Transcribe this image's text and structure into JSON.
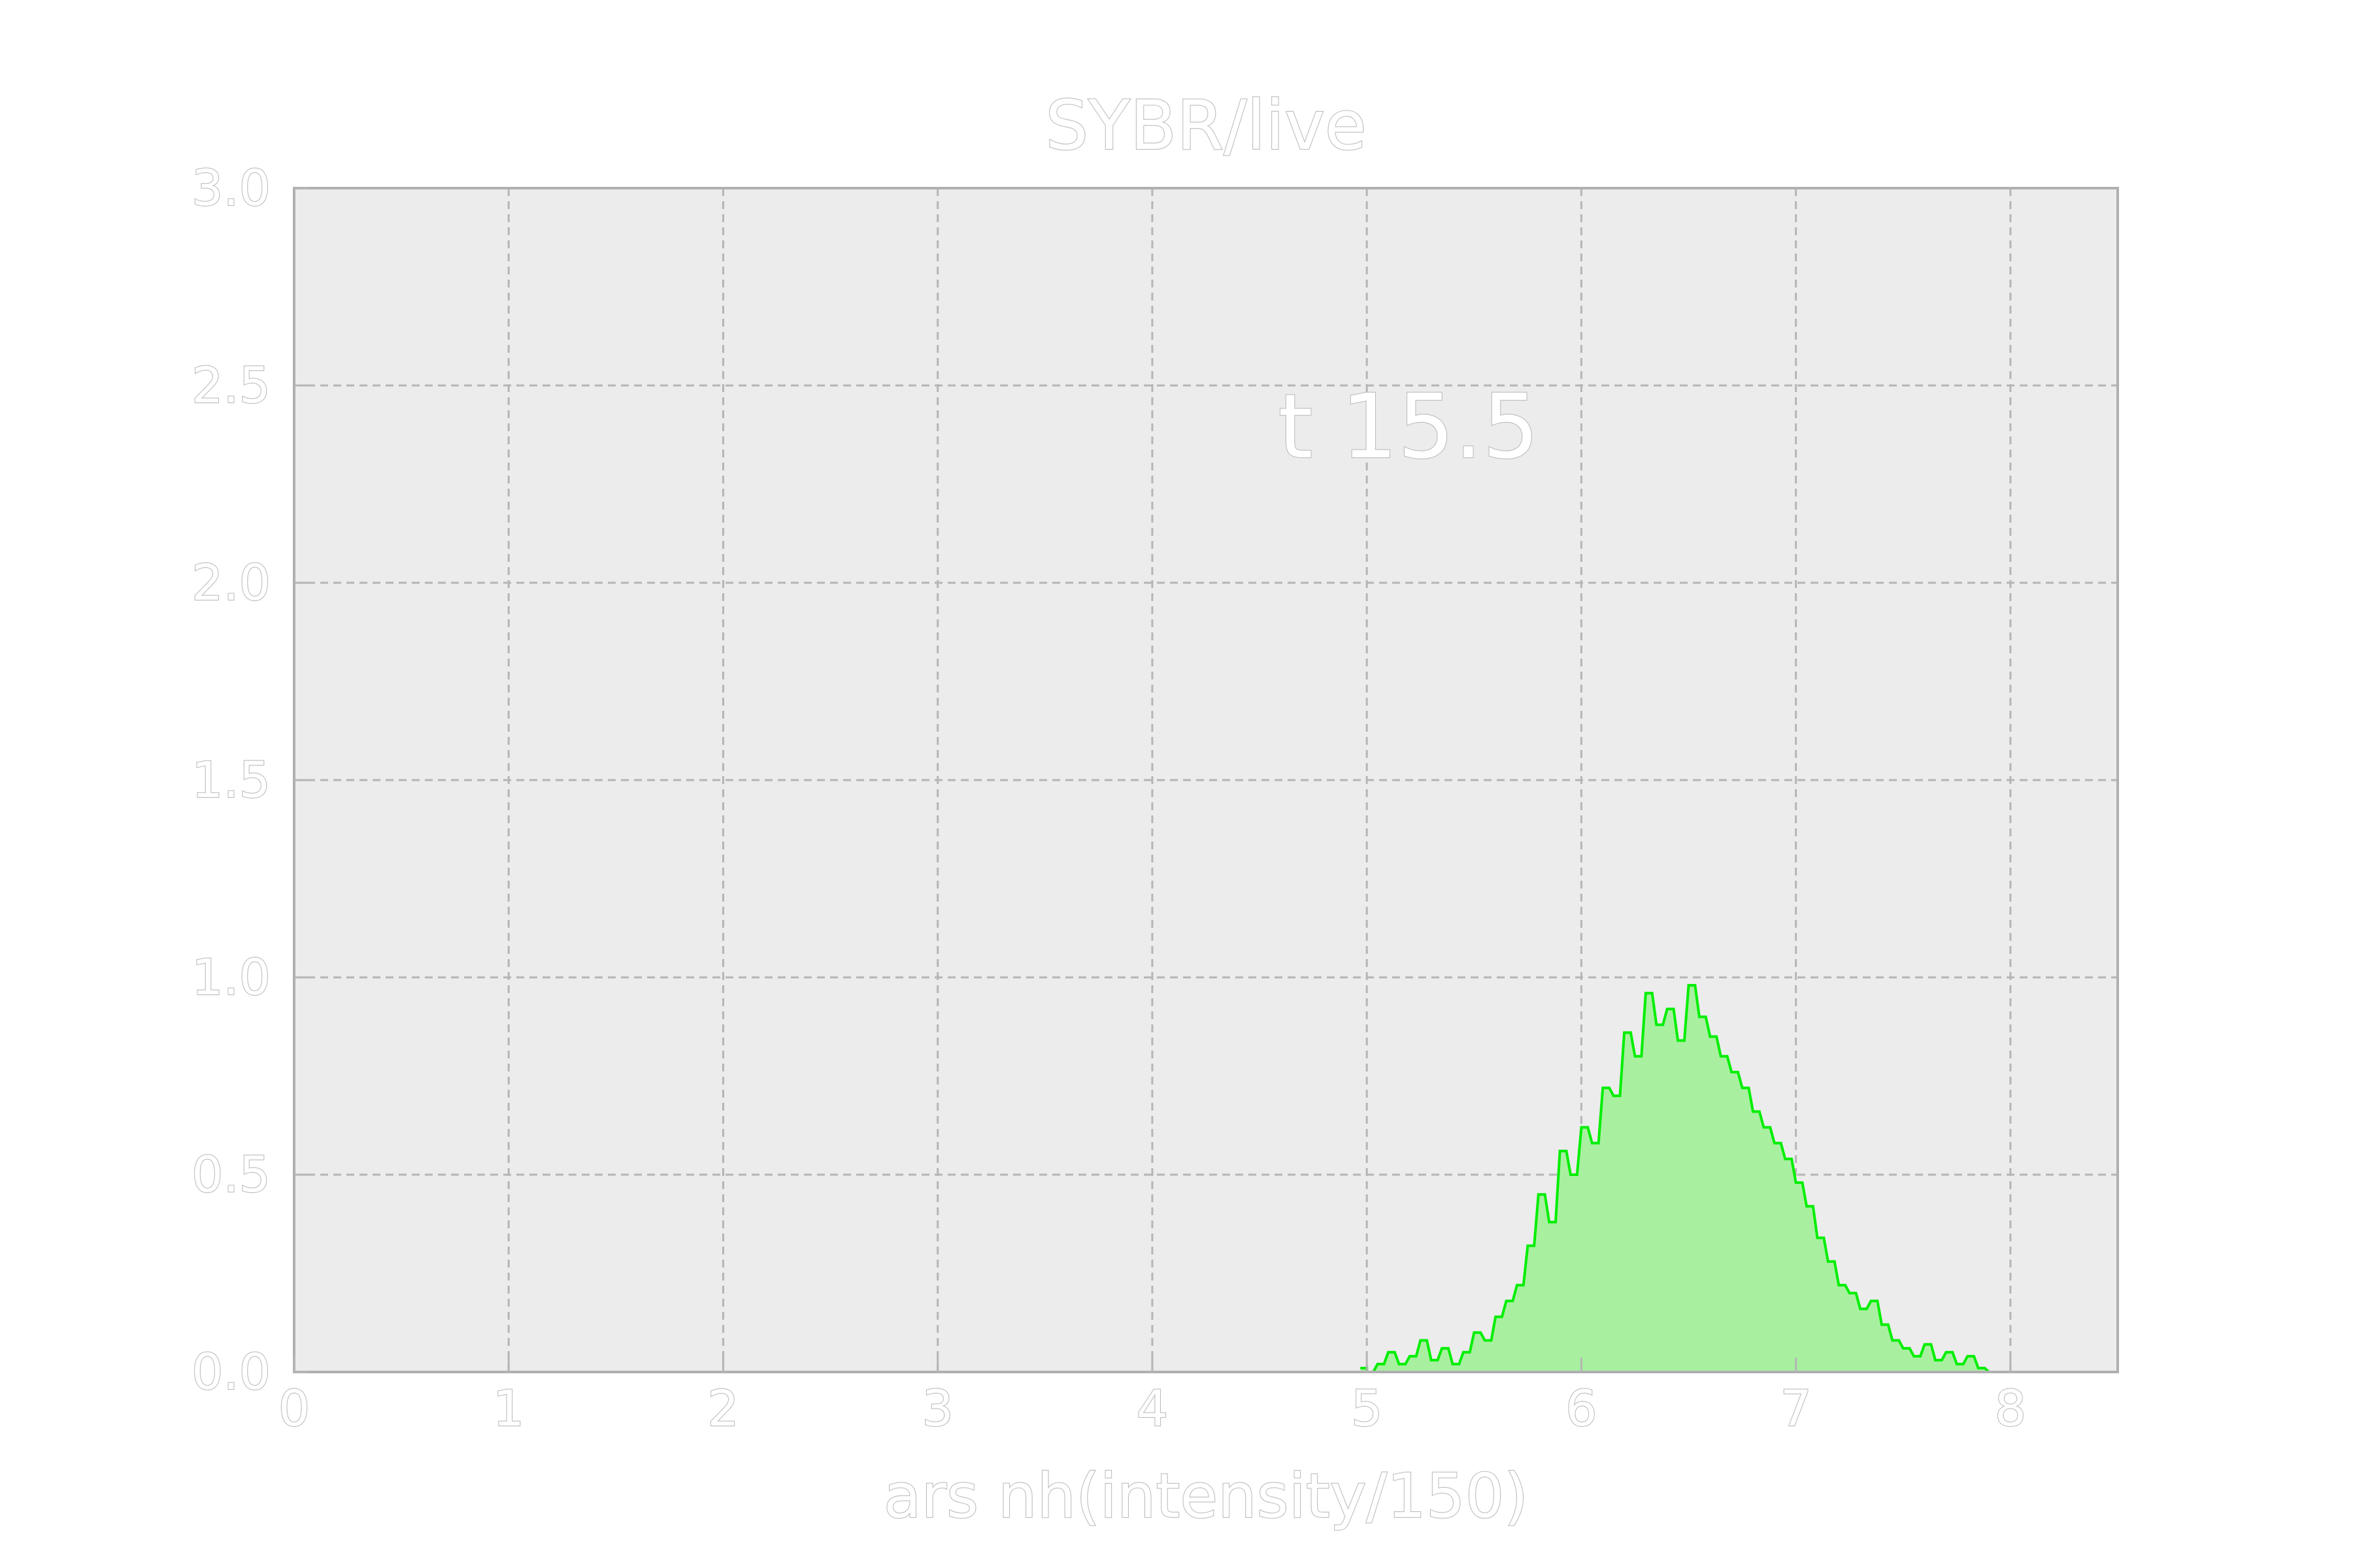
{
  "chart_data": {
    "type": "area",
    "title": "SYBR/live",
    "xlabel": "ars nh(intensity/150)",
    "ylabel": "",
    "annotation": "t 15.5",
    "xlim": [
      0,
      8.5
    ],
    "ylim": [
      0,
      3.0
    ],
    "xticks": [
      "0",
      "1",
      "2",
      "3",
      "4",
      "5",
      "6",
      "7",
      "8"
    ],
    "yticks": [
      "0.0",
      "0.5",
      "1.0",
      "1.5",
      "2.0",
      "2.5",
      "3.0"
    ],
    "grid": true,
    "colors": {
      "background": "#ffffff",
      "plot_bg": "#ececec",
      "frame": "#b0b0b0",
      "grid": "#b5b5b5",
      "line": "#00ee00",
      "fill": "#a8f0a0",
      "text": "#ffffff",
      "text_outline": "#bdbdbd"
    },
    "series": [
      {
        "x": [
          4.97,
          5.0,
          5.05,
          5.1,
          5.15,
          5.2,
          5.25,
          5.3,
          5.35,
          5.4,
          5.45,
          5.5,
          5.55,
          5.6,
          5.65,
          5.7,
          5.75,
          5.8,
          5.85,
          5.9,
          5.95,
          6.0,
          6.05,
          6.1,
          6.15,
          6.2,
          6.25,
          6.3,
          6.35,
          6.4,
          6.45,
          6.5,
          6.55,
          6.6,
          6.65,
          6.7,
          6.75,
          6.8,
          6.85,
          6.9,
          6.95,
          7.0,
          7.05,
          7.1,
          7.15,
          7.2,
          7.25,
          7.3,
          7.35,
          7.4,
          7.45,
          7.5,
          7.55,
          7.6,
          7.65,
          7.7,
          7.75,
          7.8,
          7.85,
          7.9
        ],
        "y": [
          0.01,
          0.0,
          0.02,
          0.05,
          0.02,
          0.04,
          0.08,
          0.03,
          0.06,
          0.02,
          0.05,
          0.1,
          0.08,
          0.14,
          0.18,
          0.22,
          0.32,
          0.45,
          0.38,
          0.56,
          0.5,
          0.62,
          0.58,
          0.72,
          0.7,
          0.86,
          0.8,
          0.96,
          0.88,
          0.92,
          0.84,
          0.98,
          0.9,
          0.85,
          0.8,
          0.76,
          0.72,
          0.66,
          0.62,
          0.58,
          0.54,
          0.48,
          0.42,
          0.34,
          0.28,
          0.22,
          0.2,
          0.16,
          0.18,
          0.12,
          0.08,
          0.06,
          0.04,
          0.07,
          0.03,
          0.05,
          0.02,
          0.04,
          0.01,
          0.0
        ]
      }
    ]
  }
}
